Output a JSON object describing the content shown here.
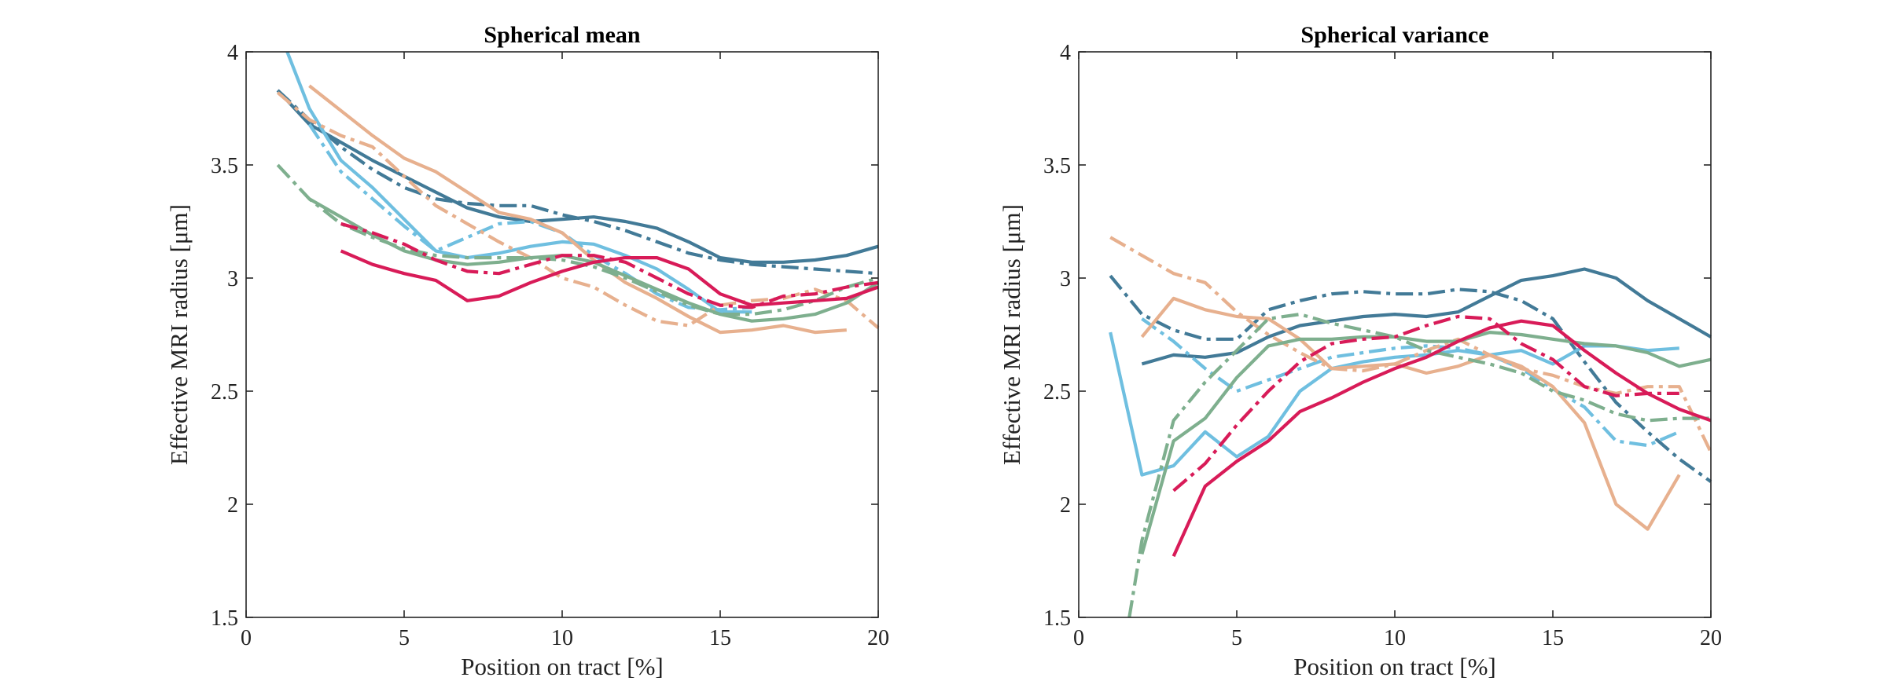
{
  "chart_data": [
    {
      "type": "line",
      "title": "Spherical mean",
      "xlabel": "Position on tract [%]",
      "ylabel": "Effective MRI radius [μm]",
      "xlim": [
        0,
        20
      ],
      "ylim": [
        1.5,
        4
      ],
      "xticks": [
        0,
        5,
        10,
        15,
        20
      ],
      "yticks": [
        1.5,
        2,
        2.5,
        3,
        3.5,
        4
      ],
      "xtick_labels": [
        "0",
        "5",
        "10",
        "15",
        "20"
      ],
      "ytick_labels": [
        "1.5",
        "2",
        "2.5",
        "3",
        "3.5",
        "4"
      ],
      "grid": false,
      "series": [
        {
          "name": "blue solid",
          "color": "#427a97",
          "dash": "solid",
          "x": [
            1,
            2,
            3,
            4,
            5,
            6,
            7,
            8,
            9,
            10,
            11,
            12,
            13,
            14,
            15,
            16,
            17,
            18,
            19,
            20
          ],
          "values": [
            3.83,
            3.68,
            3.6,
            3.52,
            3.45,
            3.38,
            3.31,
            3.27,
            3.25,
            3.26,
            3.27,
            3.25,
            3.22,
            3.16,
            3.09,
            3.07,
            3.07,
            3.08,
            3.1,
            3.14
          ]
        },
        {
          "name": "blue dash-dot",
          "color": "#427a97",
          "dash": "dashdot",
          "x": [
            1,
            2,
            3,
            4,
            5,
            6,
            7,
            8,
            9,
            10,
            11,
            12,
            13,
            14,
            15,
            16,
            17,
            18,
            19,
            20
          ],
          "values": [
            3.83,
            3.7,
            3.58,
            3.48,
            3.4,
            3.35,
            3.33,
            3.32,
            3.32,
            3.28,
            3.25,
            3.21,
            3.16,
            3.11,
            3.08,
            3.06,
            3.05,
            3.04,
            3.03,
            3.02
          ]
        },
        {
          "name": "light blue solid",
          "color": "#6fbfe0",
          "dash": "solid",
          "x": [
            1.3,
            2,
            3,
            4,
            5,
            6,
            7,
            8,
            9,
            10,
            11,
            12,
            13,
            14,
            15,
            16
          ],
          "values": [
            4.0,
            3.75,
            3.52,
            3.4,
            3.26,
            3.12,
            3.09,
            3.11,
            3.14,
            3.16,
            3.15,
            3.1,
            3.04,
            2.95,
            2.85,
            2.85
          ]
        },
        {
          "name": "light blue dash-dot",
          "color": "#6fbfe0",
          "dash": "dashdot",
          "x": [
            2,
            3,
            4,
            5,
            6,
            7,
            8,
            9,
            10,
            11,
            12,
            13,
            14,
            15,
            16
          ],
          "values": [
            3.68,
            3.47,
            3.35,
            3.23,
            3.12,
            3.18,
            3.24,
            3.25,
            3.2,
            3.1,
            3.02,
            2.93,
            2.87,
            2.86,
            2.87
          ]
        },
        {
          "name": "tan solid",
          "color": "#e7b08e",
          "dash": "solid",
          "x": [
            2,
            3,
            4,
            5,
            6,
            7,
            8,
            9,
            10,
            11,
            12,
            13,
            14,
            15,
            16,
            17,
            18,
            19
          ],
          "values": [
            3.85,
            3.74,
            3.63,
            3.53,
            3.47,
            3.38,
            3.29,
            3.26,
            3.2,
            3.08,
            2.98,
            2.91,
            2.83,
            2.76,
            2.77,
            2.79,
            2.76,
            2.77
          ]
        },
        {
          "name": "tan dash-dot",
          "color": "#e7b08e",
          "dash": "dashdot",
          "x": [
            1,
            2,
            3,
            4,
            5,
            6,
            7,
            8,
            9,
            10,
            11,
            12,
            13,
            14,
            15,
            16,
            17,
            18,
            19,
            20
          ],
          "values": [
            3.82,
            3.7,
            3.63,
            3.58,
            3.45,
            3.32,
            3.24,
            3.16,
            3.09,
            3.0,
            2.96,
            2.88,
            2.81,
            2.79,
            2.88,
            2.9,
            2.91,
            2.95,
            2.9,
            2.78
          ]
        },
        {
          "name": "green solid",
          "color": "#7eaf8e",
          "dash": "solid",
          "x": [
            2,
            3,
            4,
            5,
            6,
            7,
            8,
            9,
            10,
            11,
            12,
            13,
            14,
            15,
            16,
            17,
            18,
            19,
            20
          ],
          "values": [
            3.35,
            3.27,
            3.19,
            3.12,
            3.08,
            3.06,
            3.07,
            3.09,
            3.1,
            3.07,
            3.01,
            2.95,
            2.89,
            2.84,
            2.81,
            2.82,
            2.84,
            2.89,
            2.98
          ]
        },
        {
          "name": "green dash-dot",
          "color": "#7eaf8e",
          "dash": "dashdot",
          "x": [
            1,
            2,
            3,
            4,
            5,
            6,
            7,
            8,
            9,
            10,
            11,
            12,
            13,
            14,
            15,
            16,
            17,
            18,
            19,
            20
          ],
          "values": [
            3.5,
            3.35,
            3.24,
            3.18,
            3.13,
            3.1,
            3.09,
            3.09,
            3.09,
            3.08,
            3.05,
            3.0,
            2.94,
            2.88,
            2.84,
            2.84,
            2.86,
            2.9,
            2.96,
            3.0
          ]
        },
        {
          "name": "red solid",
          "color": "#d81b58",
          "dash": "solid",
          "x": [
            3,
            4,
            5,
            6,
            7,
            8,
            9,
            10,
            11,
            12,
            13,
            14,
            15,
            16,
            17,
            18,
            19,
            20
          ],
          "values": [
            3.12,
            3.06,
            3.02,
            2.99,
            2.9,
            2.92,
            2.98,
            3.03,
            3.07,
            3.09,
            3.09,
            3.04,
            2.93,
            2.88,
            2.89,
            2.9,
            2.91,
            2.96
          ]
        },
        {
          "name": "red dash-dot",
          "color": "#d81b58",
          "dash": "dashdot",
          "x": [
            3,
            4,
            5,
            6,
            7,
            8,
            9,
            10,
            11,
            12,
            13,
            14,
            15,
            16,
            17,
            18,
            19,
            20
          ],
          "values": [
            3.24,
            3.2,
            3.15,
            3.08,
            3.03,
            3.02,
            3.06,
            3.1,
            3.1,
            3.07,
            3.0,
            2.93,
            2.88,
            2.87,
            2.92,
            2.93,
            2.96,
            2.98
          ]
        }
      ]
    },
    {
      "type": "line",
      "title": "Spherical variance",
      "xlabel": "Position on tract [%]",
      "ylabel": "Effective MRI radius [μm]",
      "xlim": [
        0,
        20
      ],
      "ylim": [
        1.5,
        4
      ],
      "xticks": [
        0,
        5,
        10,
        15,
        20
      ],
      "yticks": [
        1.5,
        2,
        2.5,
        3,
        3.5,
        4
      ],
      "xtick_labels": [
        "0",
        "5",
        "10",
        "15",
        "20"
      ],
      "ytick_labels": [
        "1.5",
        "2",
        "2.5",
        "3",
        "3.5",
        "4"
      ],
      "grid": false,
      "series": [
        {
          "name": "blue solid",
          "color": "#427a97",
          "dash": "solid",
          "x": [
            2,
            3,
            4,
            5,
            6,
            7,
            8,
            9,
            10,
            11,
            12,
            13,
            14,
            15,
            16,
            17,
            18,
            19,
            20
          ],
          "values": [
            2.62,
            2.66,
            2.65,
            2.67,
            2.74,
            2.79,
            2.81,
            2.83,
            2.84,
            2.83,
            2.85,
            2.92,
            2.99,
            3.01,
            3.04,
            3.0,
            2.9,
            2.82,
            2.74
          ]
        },
        {
          "name": "blue dash-dot",
          "color": "#427a97",
          "dash": "dashdot",
          "x": [
            1,
            2,
            3,
            4,
            5,
            6,
            7,
            8,
            9,
            10,
            11,
            12,
            13,
            14,
            15,
            16,
            17,
            18,
            19,
            20
          ],
          "values": [
            3.01,
            2.84,
            2.77,
            2.73,
            2.73,
            2.86,
            2.9,
            2.93,
            2.94,
            2.93,
            2.93,
            2.95,
            2.94,
            2.9,
            2.82,
            2.63,
            2.45,
            2.32,
            2.2,
            2.1
          ]
        },
        {
          "name": "light blue solid",
          "color": "#6fbfe0",
          "dash": "solid",
          "x": [
            1,
            2,
            3,
            4,
            5,
            6,
            7,
            8,
            9,
            10,
            11,
            12,
            13,
            14,
            15,
            16,
            17,
            18,
            19
          ],
          "values": [
            2.76,
            2.13,
            2.17,
            2.32,
            2.21,
            2.3,
            2.5,
            2.6,
            2.63,
            2.65,
            2.66,
            2.68,
            2.66,
            2.68,
            2.62,
            2.7,
            2.7,
            2.68,
            2.69
          ]
        },
        {
          "name": "light blue dash-dot",
          "color": "#6fbfe0",
          "dash": "dashdot",
          "x": [
            2,
            3,
            4,
            5,
            6,
            7,
            8,
            9,
            10,
            11,
            12,
            13,
            14,
            15,
            16,
            17,
            18,
            19
          ],
          "values": [
            2.82,
            2.72,
            2.6,
            2.5,
            2.55,
            2.6,
            2.65,
            2.67,
            2.69,
            2.7,
            2.69,
            2.66,
            2.6,
            2.51,
            2.43,
            2.28,
            2.26,
            2.32
          ]
        },
        {
          "name": "tan solid",
          "color": "#e7b08e",
          "dash": "solid",
          "x": [
            2,
            3,
            4,
            5,
            6,
            7,
            8,
            9,
            10,
            11,
            12,
            13,
            14,
            15,
            16,
            17,
            18,
            19
          ],
          "values": [
            2.74,
            2.91,
            2.86,
            2.83,
            2.82,
            2.73,
            2.6,
            2.61,
            2.62,
            2.58,
            2.61,
            2.66,
            2.61,
            2.52,
            2.36,
            2.0,
            1.89,
            2.13
          ]
        },
        {
          "name": "tan dash-dot",
          "color": "#e7b08e",
          "dash": "dashdot",
          "x": [
            1,
            2,
            3,
            4,
            5,
            6,
            7,
            8,
            9,
            10,
            11,
            12,
            13,
            14,
            15,
            16,
            17,
            18,
            19,
            20
          ],
          "values": [
            3.18,
            3.1,
            3.02,
            2.98,
            2.85,
            2.75,
            2.67,
            2.6,
            2.59,
            2.62,
            2.68,
            2.73,
            2.66,
            2.6,
            2.57,
            2.52,
            2.49,
            2.52,
            2.52,
            2.23
          ]
        },
        {
          "name": "green solid",
          "color": "#7eaf8e",
          "dash": "solid",
          "x": [
            2,
            3,
            4,
            5,
            6,
            7,
            8,
            9,
            10,
            11,
            12,
            13,
            14,
            15,
            16,
            17,
            18,
            19,
            20
          ],
          "values": [
            1.78,
            2.28,
            2.38,
            2.56,
            2.7,
            2.73,
            2.73,
            2.74,
            2.74,
            2.72,
            2.72,
            2.76,
            2.75,
            2.73,
            2.71,
            2.7,
            2.67,
            2.61,
            2.64
          ]
        },
        {
          "name": "green dash-dot",
          "color": "#7eaf8e",
          "dash": "dashdot",
          "x": [
            1.6,
            2,
            3,
            4,
            5,
            6,
            7,
            8,
            9,
            10,
            11,
            12,
            13,
            14,
            15,
            16,
            17,
            18,
            19,
            20
          ],
          "values": [
            1.5,
            1.84,
            2.37,
            2.54,
            2.68,
            2.82,
            2.84,
            2.8,
            2.77,
            2.74,
            2.68,
            2.65,
            2.62,
            2.58,
            2.5,
            2.46,
            2.4,
            2.37,
            2.38,
            2.38
          ]
        },
        {
          "name": "red solid",
          "color": "#d81b58",
          "dash": "solid",
          "x": [
            3,
            4,
            5,
            6,
            7,
            8,
            9,
            10,
            11,
            12,
            13,
            14,
            15,
            16,
            17,
            18,
            19,
            20
          ],
          "values": [
            1.77,
            2.08,
            2.19,
            2.28,
            2.41,
            2.47,
            2.54,
            2.6,
            2.65,
            2.72,
            2.78,
            2.81,
            2.79,
            2.68,
            2.58,
            2.49,
            2.42,
            2.37
          ]
        },
        {
          "name": "red dash-dot",
          "color": "#d81b58",
          "dash": "dashdot",
          "x": [
            3,
            4,
            5,
            6,
            7,
            8,
            9,
            10,
            11,
            12,
            13,
            14,
            15,
            16,
            17,
            18,
            19
          ],
          "values": [
            2.06,
            2.18,
            2.35,
            2.5,
            2.63,
            2.71,
            2.73,
            2.74,
            2.79,
            2.83,
            2.82,
            2.71,
            2.64,
            2.52,
            2.48,
            2.49,
            2.49
          ]
        }
      ]
    }
  ]
}
